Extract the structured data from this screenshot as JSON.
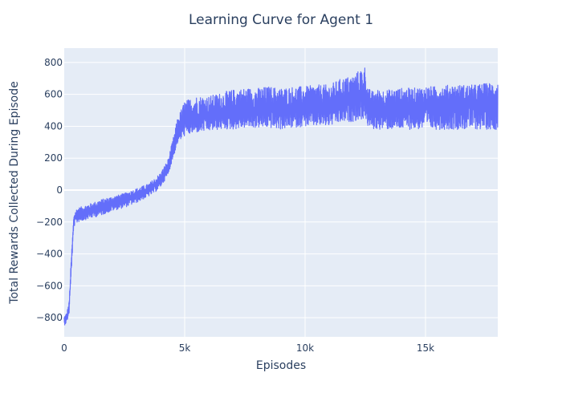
{
  "chart_data": {
    "type": "line",
    "title": "Learning Curve for Agent 1",
    "xlabel": "Episodes",
    "ylabel": "Total Rewards Collected During Episode",
    "xlim": [
      0,
      18000
    ],
    "ylim": [
      -920,
      890
    ],
    "x_ticks": [
      {
        "value": 0,
        "label": "0"
      },
      {
        "value": 5000,
        "label": "5k"
      },
      {
        "value": 10000,
        "label": "10k"
      },
      {
        "value": 15000,
        "label": "15k"
      }
    ],
    "y_ticks": [
      {
        "value": 800,
        "label": "800"
      },
      {
        "value": 600,
        "label": "600"
      },
      {
        "value": 400,
        "label": "400"
      },
      {
        "value": 200,
        "label": "200"
      },
      {
        "value": 0,
        "label": "0"
      },
      {
        "value": -200,
        "label": "−200"
      },
      {
        "value": -400,
        "label": "−400"
      },
      {
        "value": -600,
        "label": "−600"
      },
      {
        "value": -800,
        "label": "−800"
      }
    ],
    "grid": true,
    "legend": "none",
    "colors": {
      "line": "#636efa",
      "plot_bg": "#e5ecf6",
      "grid": "#ffffff",
      "text": "#2a3f5f"
    },
    "series": [
      {
        "x": [
          0,
          100,
          200,
          300,
          400,
          500,
          600,
          800,
          1000,
          1500,
          2000,
          2500,
          3000,
          3500,
          3800,
          4000,
          4300,
          4500,
          4700,
          5000,
          5500,
          6000,
          6500,
          7000,
          7500,
          8000,
          8500,
          9000,
          9500,
          10000,
          10500,
          11000,
          11500,
          12000,
          12300,
          12500,
          12600,
          12800,
          13000,
          13500,
          14000,
          14500,
          15000,
          15500,
          16000,
          16500,
          17000,
          17500,
          18000
        ],
        "y": [
          -820,
          -800,
          -750,
          -450,
          -190,
          -160,
          -150,
          -140,
          -130,
          -110,
          -80,
          -60,
          -30,
          0,
          30,
          60,
          130,
          240,
          360,
          430,
          460,
          460,
          480,
          490,
          500,
          500,
          510,
          500,
          510,
          520,
          520,
          530,
          560,
          560,
          580,
          600,
          520,
          500,
          510,
          510,
          520,
          520,
          530,
          530,
          530,
          540,
          540,
          540,
          540
        ],
        "y_low": [
          -850,
          -830,
          -780,
          -500,
          -230,
          -210,
          -200,
          -190,
          -180,
          -160,
          -130,
          -110,
          -80,
          -40,
          -10,
          20,
          90,
          190,
          290,
          340,
          360,
          370,
          380,
          380,
          390,
          390,
          390,
          380,
          390,
          400,
          400,
          400,
          420,
          430,
          440,
          450,
          400,
          380,
          380,
          380,
          380,
          380,
          380,
          380,
          380,
          380,
          380,
          380,
          380
        ],
        "y_high": [
          -790,
          -770,
          -700,
          -400,
          -150,
          -120,
          -110,
          -100,
          -90,
          -60,
          -40,
          -20,
          10,
          40,
          80,
          110,
          190,
          310,
          450,
          560,
          590,
          590,
          610,
          630,
          640,
          640,
          650,
          640,
          650,
          650,
          660,
          660,
          700,
          720,
          760,
          780,
          640,
          620,
          630,
          630,
          640,
          640,
          650,
          650,
          660,
          660,
          660,
          670,
          680
        ]
      }
    ]
  }
}
